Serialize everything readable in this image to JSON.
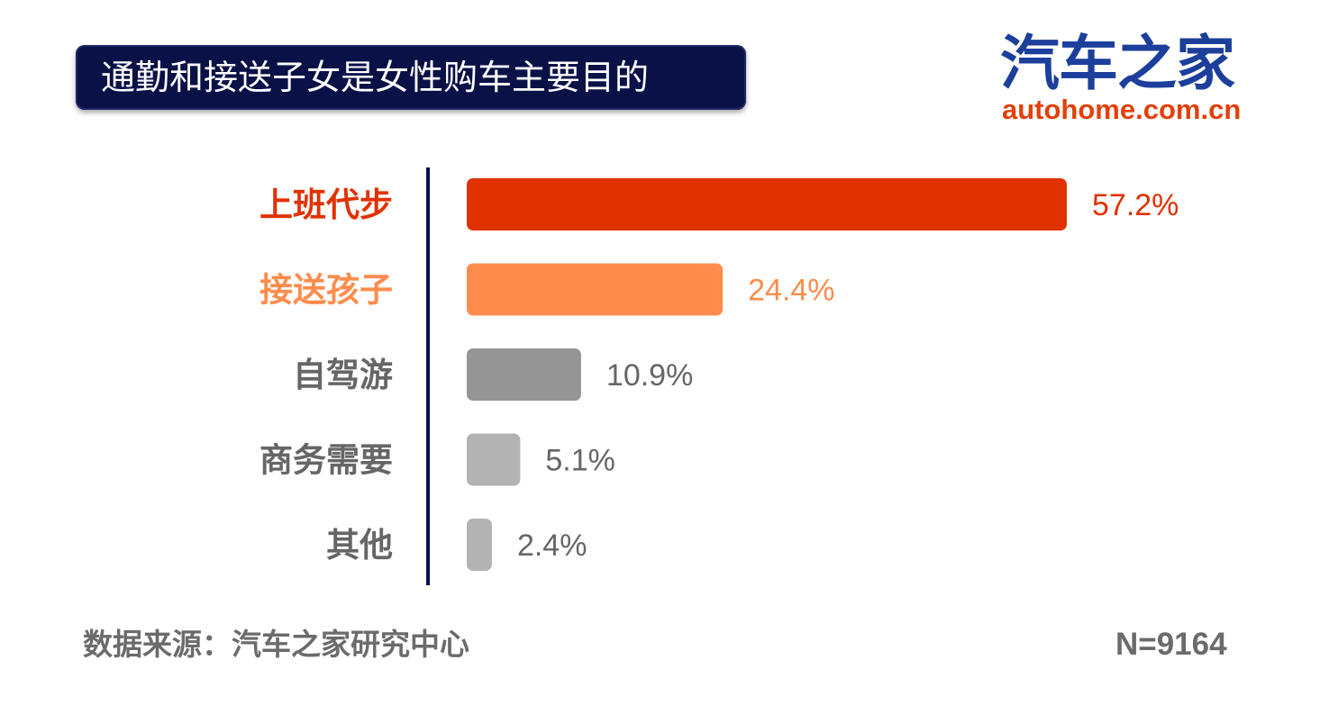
{
  "header": {
    "title": "通勤和接送子女是女性购车主要目的"
  },
  "logo": {
    "cn": "汽车之家",
    "en": "autohome.com.cn"
  },
  "chart_data": {
    "type": "bar",
    "orientation": "horizontal",
    "categories": [
      "上班代步",
      "接送孩子",
      "自驾游",
      "商务需要",
      "其他"
    ],
    "values": [
      57.2,
      24.4,
      10.9,
      5.1,
      2.4
    ],
    "value_labels": [
      "57.2%",
      "24.4%",
      "10.9%",
      "5.1%",
      "2.4%"
    ],
    "colors": [
      "#e03200",
      "#ff8c4c",
      "#959595",
      "#b3b3b3",
      "#b3b3b3"
    ],
    "label_colors": [
      "#e03200",
      "#ff8c4c",
      "#666666",
      "#666666",
      "#666666"
    ],
    "label_bold": [
      true,
      true,
      false,
      false,
      false
    ],
    "axis_color": "#0a1147",
    "xlim": [
      0,
      57.2
    ]
  },
  "footer": {
    "source": "数据来源：汽车之家研究中心",
    "n": "N=9164"
  }
}
